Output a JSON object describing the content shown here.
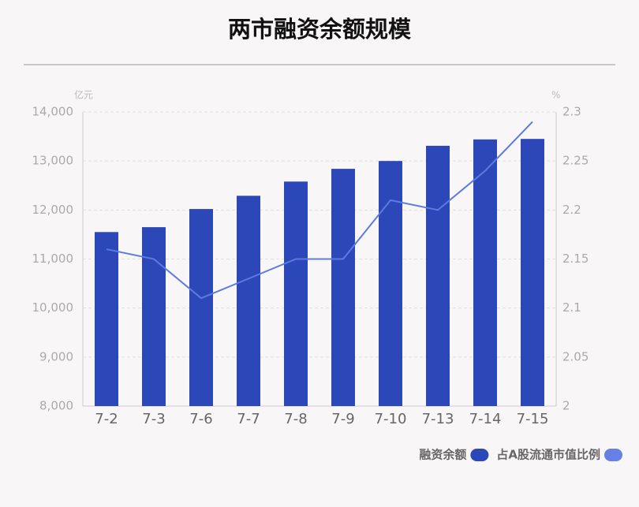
{
  "chart_data": {
    "type": "bar",
    "title": "两市融资余额规模",
    "y_unit": "亿元",
    "y2_unit": "%",
    "categories": [
      "7-2",
      "7-3",
      "7-6",
      "7-7",
      "7-8",
      "7-9",
      "7-10",
      "7-13",
      "7-14",
      "7-15"
    ],
    "series": [
      {
        "name": "融资余额",
        "type": "bar",
        "color": "#2b47b8",
        "values": [
          11550,
          11650,
          12020,
          12290,
          12580,
          12840,
          13000,
          13310,
          13440,
          13450
        ]
      },
      {
        "name": "占A股流通市值比例",
        "type": "line",
        "axis": "y2",
        "color": "#5b7be0",
        "values": [
          2.16,
          2.15,
          2.11,
          2.13,
          2.15,
          2.15,
          2.21,
          2.2,
          2.24,
          2.29
        ]
      }
    ],
    "ylim": [
      8000,
      14000
    ],
    "yticks": [
      {
        "value": 8000,
        "label": "8,000"
      },
      {
        "value": 9000,
        "label": "9,000"
      },
      {
        "value": 10000,
        "label": "10,000"
      },
      {
        "value": 11000,
        "label": "11,000"
      },
      {
        "value": 12000,
        "label": "12,000"
      },
      {
        "value": 13000,
        "label": "13,000"
      },
      {
        "value": 14000,
        "label": "14,000"
      }
    ],
    "y2lim": [
      2,
      2.3
    ],
    "y2ticks": [
      2,
      2.05,
      2.1,
      2.15,
      2.2,
      2.25,
      2.3
    ],
    "grid": true
  }
}
